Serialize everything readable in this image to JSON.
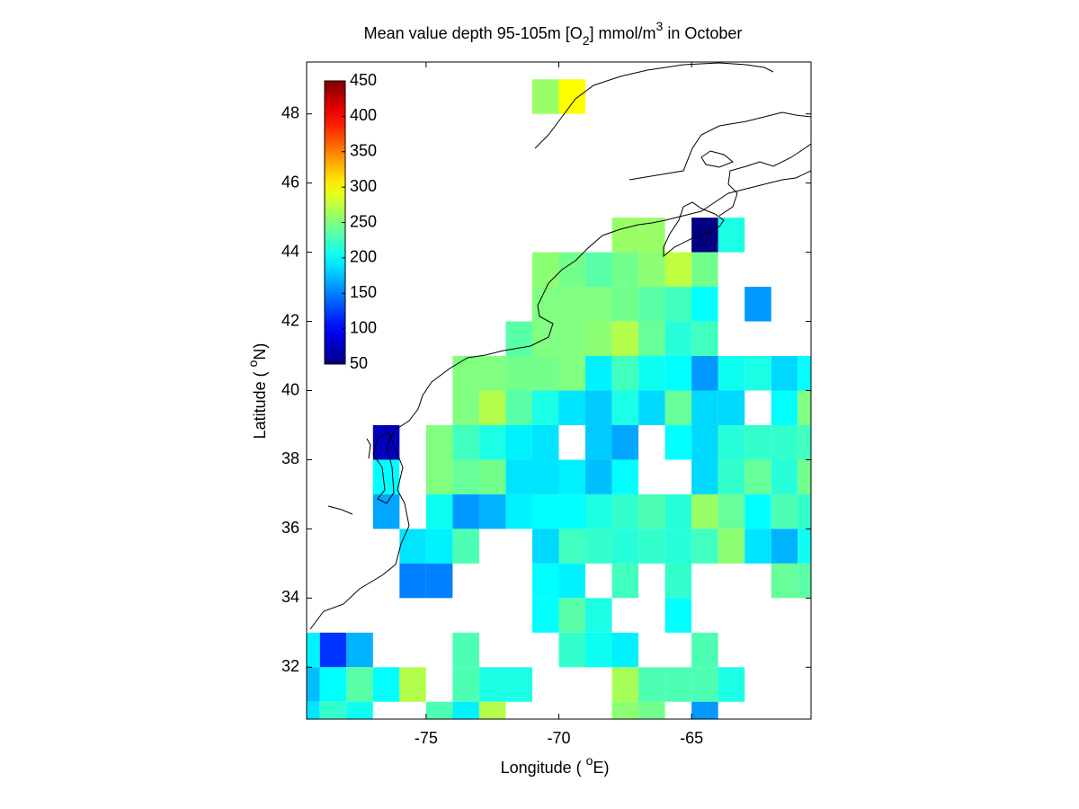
{
  "chart_data": {
    "type": "heatmap",
    "title_parts": [
      "Mean value depth 95-105m [O",
      "2",
      "] mmol/m",
      "3",
      " in October"
    ],
    "x_label_parts": [
      "Longitude ( ",
      "o",
      "E)"
    ],
    "y_label_parts": [
      "Latitude ( ",
      "o",
      "N)"
    ],
    "xlim": [
      -79.5,
      -60.5
    ],
    "ylim": [
      30.5,
      49.5
    ],
    "xticks": [
      -75,
      -70,
      -65
    ],
    "yticks": [
      32,
      34,
      36,
      38,
      40,
      42,
      44,
      46,
      48
    ],
    "colormap": "jet",
    "clim": [
      50,
      450
    ],
    "cticks": [
      50,
      100,
      150,
      200,
      250,
      300,
      350,
      400,
      450
    ],
    "x": [
      -71,
      -70,
      -68,
      -67,
      -65,
      -64,
      -71,
      -70,
      -69,
      -68,
      -67,
      -66,
      -65,
      -71,
      -70,
      -69,
      -68,
      -67,
      -66,
      -65,
      -63,
      -72,
      -71,
      -70,
      -69,
      -68,
      -67,
      -66,
      -65,
      -74,
      -73,
      -72,
      -71,
      -70,
      -69,
      -68,
      -67,
      -66,
      -65,
      -64,
      -63,
      -62,
      -61,
      -74,
      -73,
      -72,
      -71,
      -70,
      -69,
      -68,
      -67,
      -66,
      -65,
      -64,
      -62,
      -61,
      -77,
      -75,
      -74,
      -73,
      -72,
      -71,
      -69,
      -68,
      -66,
      -65,
      -64,
      -63,
      -62,
      -61,
      -77,
      -75,
      -74,
      -73,
      -72,
      -71,
      -70,
      -69,
      -68,
      -65,
      -64,
      -63,
      -62,
      -61,
      -77,
      -75,
      -74,
      -73,
      -72,
      -71,
      -70,
      -69,
      -68,
      -67,
      -66,
      -65,
      -64,
      -63,
      -62,
      -61,
      -76,
      -75,
      -74,
      -71,
      -70,
      -69,
      -68,
      -67,
      -66,
      -65,
      -64,
      -63,
      -62,
      -61,
      -76,
      -75,
      -71,
      -70,
      -68,
      -66,
      -62,
      -61,
      -71,
      -70,
      -69,
      -66,
      -80,
      -79,
      -78,
      -74,
      -70,
      -69,
      -68,
      -65,
      -80,
      -79,
      -78,
      -77,
      -76,
      -74,
      -73,
      -72,
      -68,
      -67,
      -66,
      -65,
      -64,
      -80,
      -79,
      -78,
      -75,
      -74,
      -73,
      -68,
      -67,
      -65
    ],
    "y": [
      48,
      48,
      44,
      44,
      44,
      44,
      43,
      43,
      43,
      43,
      43,
      43,
      43,
      42,
      42,
      42,
      42,
      42,
      42,
      42,
      42,
      41,
      41,
      41,
      41,
      41,
      41,
      41,
      41,
      40,
      40,
      40,
      40,
      40,
      40,
      40,
      40,
      40,
      40,
      40,
      40,
      40,
      40,
      39,
      39,
      39,
      39,
      39,
      39,
      39,
      39,
      39,
      39,
      39,
      39,
      39,
      38,
      38,
      38,
      38,
      38,
      38,
      38,
      38,
      38,
      38,
      38,
      38,
      38,
      38,
      37,
      37,
      37,
      37,
      37,
      37,
      37,
      37,
      37,
      37,
      37,
      37,
      37,
      37,
      36,
      36,
      36,
      36,
      36,
      36,
      36,
      36,
      36,
      36,
      36,
      36,
      36,
      36,
      36,
      36,
      35,
      35,
      35,
      35,
      35,
      35,
      35,
      35,
      35,
      35,
      35,
      35,
      35,
      35,
      34,
      34,
      34,
      34,
      34,
      34,
      34,
      34,
      33,
      33,
      33,
      33,
      32,
      32,
      32,
      32,
      32,
      32,
      32,
      32,
      31,
      31,
      31,
      31,
      31,
      31,
      31,
      31,
      31,
      31,
      31,
      31,
      31,
      30,
      30,
      30,
      30,
      30,
      30,
      30,
      30,
      30
    ],
    "values": [
      260,
      300,
      260,
      260,
      50,
      210,
      255,
      245,
      235,
      245,
      255,
      275,
      245,
      250,
      250,
      250,
      245,
      235,
      225,
      200,
      160,
      235,
      250,
      250,
      255,
      270,
      240,
      215,
      225,
      250,
      250,
      245,
      245,
      250,
      195,
      225,
      205,
      200,
      160,
      205,
      210,
      185,
      200,
      250,
      270,
      235,
      210,
      190,
      180,
      210,
      185,
      240,
      185,
      185,
      200,
      250,
      75,
      250,
      225,
      210,
      195,
      190,
      180,
      165,
      200,
      185,
      215,
      220,
      220,
      225,
      200,
      250,
      240,
      245,
      190,
      190,
      195,
      175,
      200,
      185,
      220,
      240,
      215,
      245,
      165,
      205,
      160,
      170,
      195,
      200,
      200,
      210,
      220,
      230,
      215,
      260,
      240,
      200,
      230,
      220,
      190,
      195,
      230,
      185,
      225,
      220,
      215,
      220,
      215,
      225,
      255,
      190,
      170,
      205,
      150,
      150,
      200,
      195,
      225,
      220,
      240,
      235,
      200,
      235,
      210,
      200,
      195,
      120,
      170,
      230,
      220,
      205,
      195,
      230,
      175,
      200,
      235,
      200,
      270,
      230,
      210,
      210,
      265,
      230,
      230,
      230,
      210,
      190,
      220,
      205,
      230,
      195,
      270,
      255,
      245,
      160
    ]
  }
}
